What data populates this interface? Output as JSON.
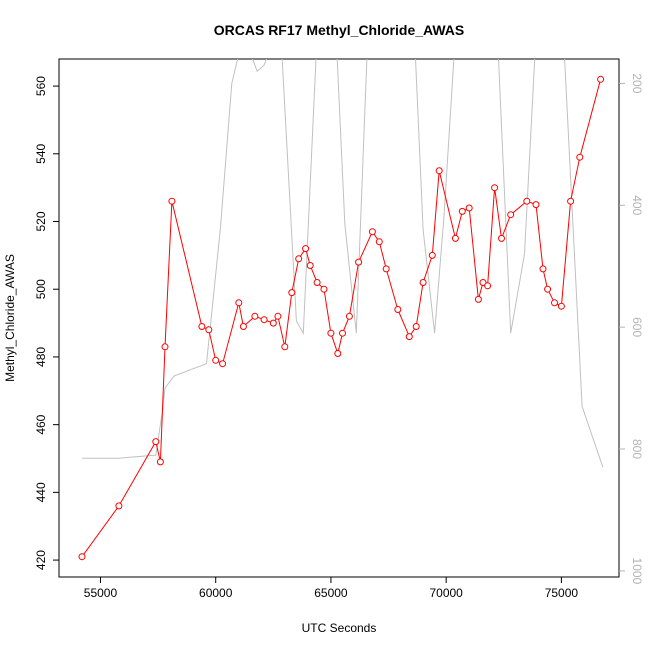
{
  "chart_data": {
    "type": "line",
    "title": "ORCAS RF17 Methyl_Chloride_AWAS",
    "xlabel": "UTC Seconds",
    "ylabel": "Methyl_Chloride_AWAS",
    "xlim": [
      53200,
      77500
    ],
    "ylim": [
      415,
      568
    ],
    "y2lim": [
      1010,
      160
    ],
    "y2_inverted": true,
    "x_ticks": [
      55000,
      60000,
      65000,
      70000,
      75000
    ],
    "y_ticks": [
      420,
      440,
      460,
      480,
      500,
      520,
      540,
      560
    ],
    "y2_ticks": [
      200,
      400,
      600,
      800,
      1000
    ],
    "grid": false,
    "series": [
      {
        "color": "#ff0000",
        "marker": "open-circle",
        "axis": "left",
        "x": [
          54200,
          55800,
          57400,
          57600,
          57800,
          58100,
          59400,
          59700,
          60000,
          60300,
          61000,
          61200,
          61700,
          62100,
          62500,
          62700,
          63000,
          63300,
          63600,
          63900,
          64100,
          64400,
          64700,
          65000,
          65300,
          65500,
          65800,
          66200,
          66800,
          67100,
          67400,
          67900,
          68400,
          68700,
          69000,
          69400,
          69700,
          70400,
          70700,
          71000,
          71400,
          71600,
          71800,
          72100,
          72400,
          72800,
          73500,
          73900,
          74200,
          74400,
          74700,
          75000,
          75400,
          75800,
          76700
        ],
        "y": [
          421,
          436,
          455,
          449,
          483,
          526,
          489,
          488,
          479,
          478,
          496,
          489,
          492,
          491,
          490,
          492,
          483,
          499,
          509,
          512,
          507,
          502,
          500,
          487,
          481,
          487,
          492,
          508,
          517,
          514,
          506,
          494,
          486,
          489,
          502,
          510,
          535,
          515,
          523,
          524,
          497,
          502,
          501,
          530,
          515,
          522,
          526,
          525,
          506,
          500,
          496,
          495,
          526,
          539,
          562
        ]
      },
      {
        "color": "#c0c0c0",
        "marker": "none",
        "axis": "right",
        "x": [
          54200,
          55800,
          57400,
          57700,
          57800,
          58200,
          59600,
          60200,
          60700,
          61200,
          61800,
          62100,
          62800,
          63500,
          63800,
          64400,
          65200,
          65600,
          66100,
          66600,
          67200,
          67800,
          68600,
          69000,
          69500,
          69900,
          70400,
          70900,
          71700,
          72200,
          72800,
          73400,
          73900,
          74500,
          75100,
          75900,
          76800
        ],
        "y": [
          815,
          815,
          810,
          735,
          700,
          680,
          660,
          440,
          200,
          120,
          180,
          170,
          100,
          590,
          610,
          120,
          100,
          430,
          610,
          120,
          100,
          130,
          100,
          440,
          610,
          420,
          120,
          100,
          140,
          100,
          610,
          480,
          120,
          100,
          130,
          730,
          830
        ]
      }
    ]
  }
}
